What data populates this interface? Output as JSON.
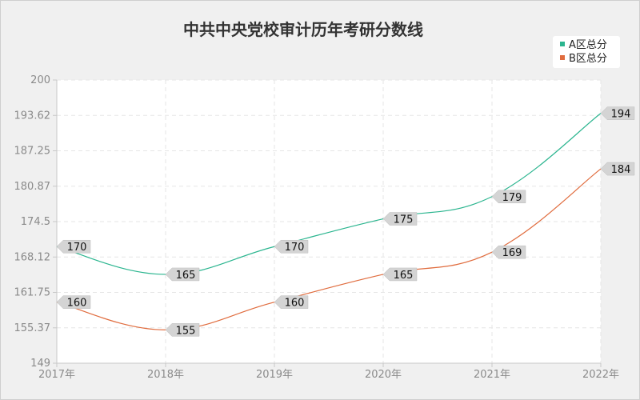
{
  "chart_data": {
    "type": "line",
    "title": "中共中央党校审计历年考研分数线",
    "categories": [
      "2017年",
      "2018年",
      "2019年",
      "2020年",
      "2021年",
      "2022年"
    ],
    "y_ticks": [
      "149",
      "155.37",
      "161.75",
      "168.12",
      "174.5",
      "180.87",
      "187.25",
      "193.62",
      "200"
    ],
    "ylim": [
      149,
      200
    ],
    "series": [
      {
        "name": "A区总分",
        "values": [
          170,
          165,
          170,
          175,
          179,
          194
        ],
        "color": "#2bb58f"
      },
      {
        "name": "B区总分",
        "values": [
          160,
          155,
          160,
          165,
          169,
          184
        ],
        "color": "#e06c3e"
      }
    ],
    "legend_position": "top-right",
    "grid": true
  }
}
